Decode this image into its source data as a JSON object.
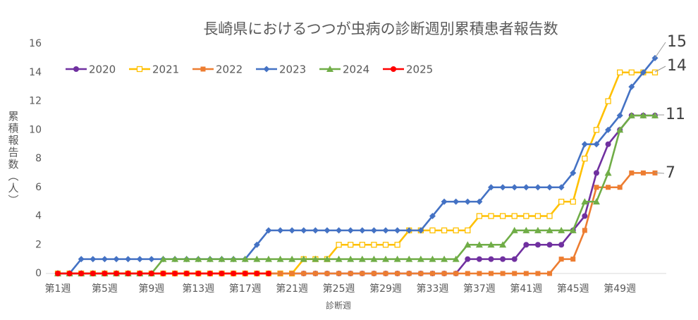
{
  "chart_data": {
    "type": "line",
    "title": "長崎県におけるつつが虫病の診断週別累積患者報告数",
    "x_label": "診断週",
    "y_label": "累積報告数（人）",
    "categories": [
      "第1週",
      null,
      null,
      null,
      "第5週",
      null,
      null,
      null,
      "第9週",
      null,
      null,
      null,
      "第13週",
      null,
      null,
      null,
      "第17週",
      null,
      null,
      null,
      "第21週",
      null,
      null,
      null,
      "第25週",
      null,
      null,
      null,
      "第29週",
      null,
      null,
      null,
      "第33週",
      null,
      null,
      null,
      "第37週",
      null,
      null,
      null,
      "第41週",
      null,
      null,
      null,
      "第45週",
      null,
      null,
      null,
      "第49週",
      null,
      null,
      null
    ],
    "ylim": [
      0,
      16
    ],
    "yticks": [
      0,
      2,
      4,
      6,
      8,
      10,
      12,
      14,
      16
    ],
    "grid": false,
    "legend": "top-left",
    "series": [
      {
        "name": "2020",
        "color": "#7030a0",
        "marker": "circle",
        "values": [
          0,
          0,
          0,
          0,
          0,
          0,
          0,
          0,
          0,
          0,
          0,
          0,
          0,
          0,
          0,
          0,
          0,
          0,
          0,
          0,
          0,
          0,
          0,
          0,
          0,
          0,
          0,
          0,
          0,
          0,
          0,
          0,
          0,
          0,
          0,
          1,
          1,
          1,
          1,
          1,
          2,
          2,
          2,
          2,
          3,
          4,
          7,
          9,
          10,
          11,
          11,
          11
        ]
      },
      {
        "name": "2021",
        "color": "#ffc000",
        "marker": "open-square",
        "values": [
          0,
          0,
          0,
          0,
          0,
          0,
          0,
          0,
          0,
          0,
          0,
          0,
          0,
          0,
          0,
          0,
          0,
          0,
          0,
          0,
          0,
          1,
          1,
          1,
          2,
          2,
          2,
          2,
          2,
          2,
          3,
          3,
          3,
          3,
          3,
          3,
          4,
          4,
          4,
          4,
          4,
          4,
          4,
          5,
          5,
          8,
          10,
          12,
          14,
          14,
          14,
          14
        ]
      },
      {
        "name": "2022",
        "color": "#ed7d31",
        "marker": "square",
        "values": [
          0,
          0,
          0,
          0,
          0,
          0,
          0,
          0,
          0,
          0,
          0,
          0,
          0,
          0,
          0,
          0,
          0,
          0,
          0,
          0,
          0,
          0,
          0,
          0,
          0,
          0,
          0,
          0,
          0,
          0,
          0,
          0,
          0,
          0,
          0,
          0,
          0,
          0,
          0,
          0,
          0,
          0,
          0,
          1,
          1,
          3,
          6,
          6,
          6,
          7,
          7,
          7
        ]
      },
      {
        "name": "2023",
        "color": "#4472c4",
        "marker": "diamond",
        "values": [
          0,
          0,
          1,
          1,
          1,
          1,
          1,
          1,
          1,
          1,
          1,
          1,
          1,
          1,
          1,
          1,
          1,
          2,
          3,
          3,
          3,
          3,
          3,
          3,
          3,
          3,
          3,
          3,
          3,
          3,
          3,
          3,
          4,
          5,
          5,
          5,
          5,
          6,
          6,
          6,
          6,
          6,
          6,
          6,
          7,
          9,
          9,
          10,
          11,
          13,
          14,
          15
        ]
      },
      {
        "name": "2024",
        "color": "#70ad47",
        "marker": "triangle",
        "values": [
          0,
          0,
          0,
          0,
          0,
          0,
          0,
          0,
          0,
          1,
          1,
          1,
          1,
          1,
          1,
          1,
          1,
          1,
          1,
          1,
          1,
          1,
          1,
          1,
          1,
          1,
          1,
          1,
          1,
          1,
          1,
          1,
          1,
          1,
          1,
          2,
          2,
          2,
          2,
          3,
          3,
          3,
          3,
          3,
          3,
          5,
          5,
          7,
          10,
          11,
          11,
          11
        ]
      },
      {
        "name": "2025",
        "color": "#ff0000",
        "marker": "circle",
        "values": [
          0,
          0,
          0,
          0,
          0,
          0,
          0,
          0,
          0,
          0,
          0,
          0,
          0,
          0,
          0,
          0,
          0,
          0,
          0,
          null,
          null,
          null,
          null,
          null,
          null,
          null,
          null,
          null,
          null,
          null,
          null,
          null,
          null,
          null,
          null,
          null,
          null,
          null,
          null,
          null,
          null,
          null,
          null,
          null,
          null,
          null,
          null,
          null,
          null,
          null,
          null,
          null
        ]
      }
    ],
    "annotations": [
      "15",
      "14",
      "11",
      "7"
    ]
  }
}
